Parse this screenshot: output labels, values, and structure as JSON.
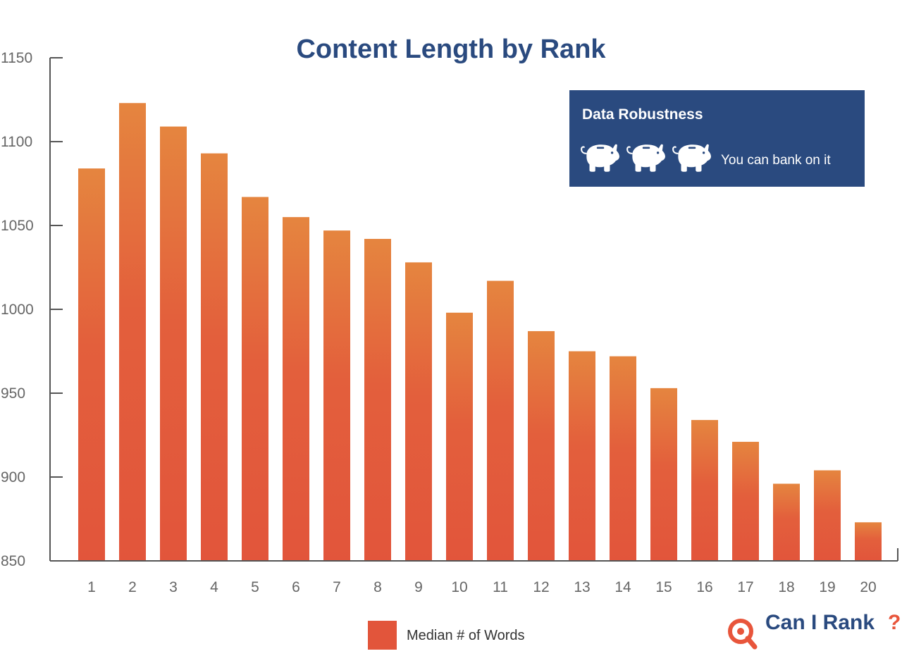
{
  "chart_data": {
    "type": "bar",
    "title": "Content Length by Rank",
    "xlabel": "",
    "ylabel": "",
    "ylim": [
      850,
      1150
    ],
    "yticks": [
      850,
      900,
      950,
      1000,
      1050,
      1100,
      1150
    ],
    "categories": [
      "1",
      "2",
      "3",
      "4",
      "5",
      "6",
      "7",
      "8",
      "9",
      "10",
      "11",
      "12",
      "13",
      "14",
      "15",
      "16",
      "17",
      "18",
      "19",
      "20"
    ],
    "series": [
      {
        "name": "Median # of Words",
        "values": [
          1084,
          1123,
          1109,
          1093,
          1067,
          1055,
          1047,
          1042,
          1028,
          998,
          1017,
          987,
          975,
          972,
          953,
          934,
          921,
          896,
          904,
          873
        ]
      }
    ],
    "grid": false,
    "legend_position": "bottom-center"
  },
  "robustness_panel": {
    "title": "Data Robustness",
    "icons": [
      "piggy-bank-icon",
      "piggy-bank-icon",
      "piggy-bank-icon"
    ],
    "text": "You can bank on it"
  },
  "brand": {
    "name": "Can I Rank",
    "mark": "?"
  },
  "colors": {
    "title": "#2a4a7f",
    "bar_top": "#e5853f",
    "bar_bottom": "#e2553b",
    "panel_bg": "#2a4a7f",
    "axis": "#555555",
    "brand_orange": "#e8553b"
  }
}
